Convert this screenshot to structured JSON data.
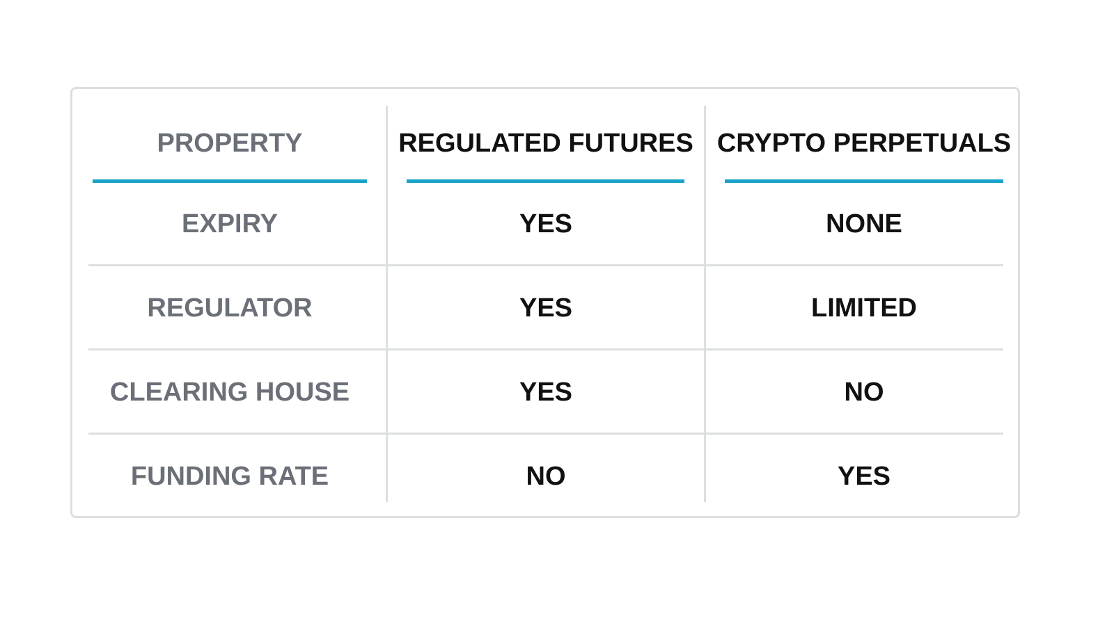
{
  "table": {
    "header": [
      "PROPERTY",
      "REGULATED FUTURES",
      "CRYPTO PERPETUALS"
    ],
    "rows": [
      [
        "EXPIRY",
        "YES",
        "NONE"
      ],
      [
        "REGULATOR",
        "YES",
        "LIMITED"
      ],
      [
        "CLEARING HOUSE",
        "YES",
        "NO"
      ],
      [
        "FUNDING RATE",
        "NO",
        "YES"
      ]
    ]
  }
}
